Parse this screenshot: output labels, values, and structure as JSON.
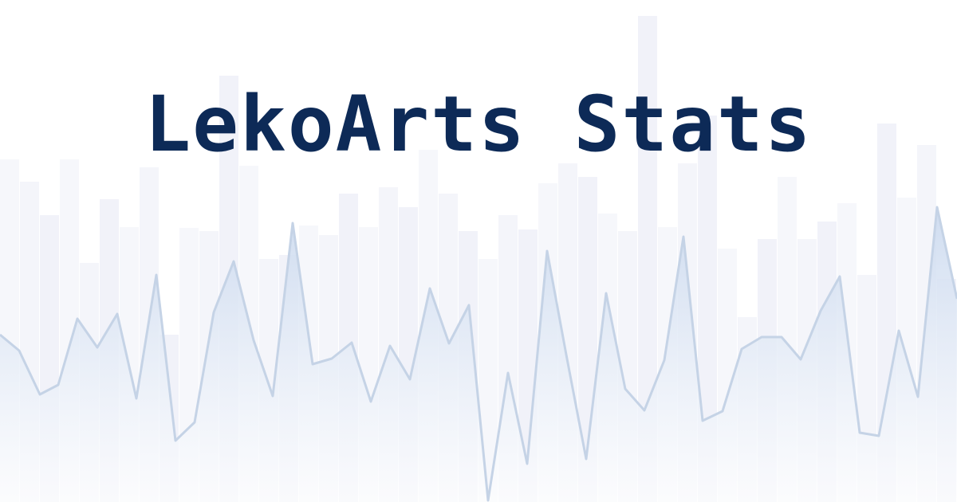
{
  "title": "LekoArts Stats",
  "colors": {
    "background": "#ffffff",
    "title": "#0d2a57",
    "bars": "#e9eaf5",
    "area_top": "#c9d8ee",
    "area_bottom": "#ffffff",
    "line": "#c5d3e6"
  }
}
